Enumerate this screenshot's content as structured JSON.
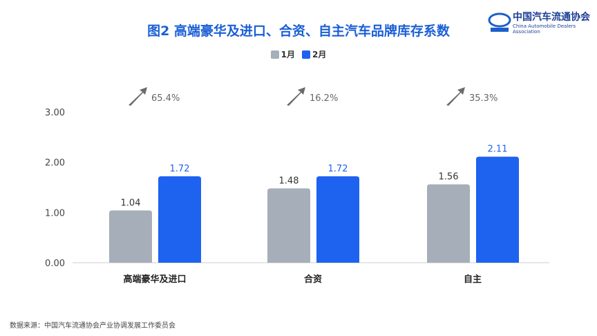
{
  "title": "图2  高端豪华及进口、合资、自主汽车品牌库存系数",
  "logo": {
    "cn": "中国汽车流通协会",
    "en": "China Automobile Dealers Association"
  },
  "source": "数据来源：中国汽车流通协会产业协调发展工作委员会",
  "chart_data": {
    "type": "bar",
    "categories": [
      "高端豪华及进口",
      "合资",
      "自主"
    ],
    "series": [
      {
        "name": "1月",
        "values": [
          1.04,
          1.48,
          1.56
        ],
        "color": "#a6aeb9"
      },
      {
        "name": "2月",
        "values": [
          1.72,
          1.72,
          2.11
        ],
        "color": "#1e62f0"
      }
    ],
    "growth": [
      "65.4%",
      "16.2%",
      "35.3%"
    ],
    "yticks": [
      "0.00",
      "1.00",
      "2.00",
      "3.00"
    ],
    "ylim": [
      0,
      3
    ],
    "legend": "top"
  }
}
